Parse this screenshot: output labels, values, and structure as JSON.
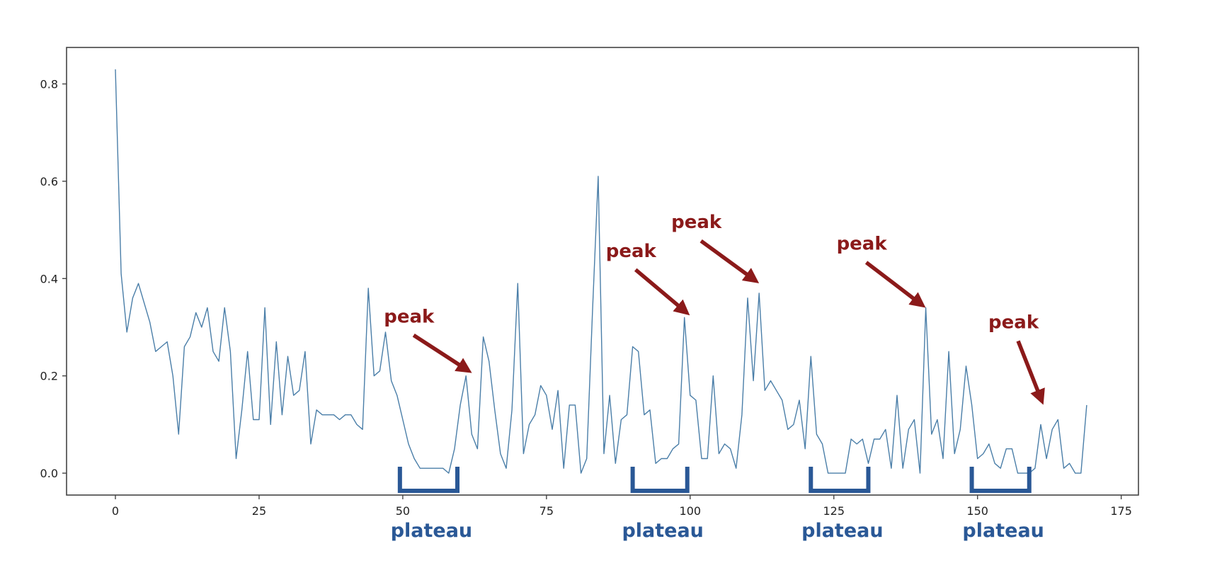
{
  "chart_data": {
    "type": "line",
    "title": "",
    "xlabel": "",
    "ylabel": "",
    "xlim": [
      -8.5,
      178
    ],
    "ylim": [
      -0.045,
      0.875
    ],
    "xticks": [
      0,
      25,
      50,
      75,
      100,
      125,
      150,
      175
    ],
    "xtick_labels": [
      "0",
      "25",
      "50",
      "75",
      "100",
      "125",
      "150",
      "175"
    ],
    "yticks": [
      0.0,
      0.2,
      0.4,
      0.6,
      0.8
    ],
    "ytick_labels": [
      "0.0",
      "0.2",
      "0.4",
      "0.6",
      "0.8"
    ],
    "grid": false,
    "series": [
      {
        "color": "#4a7ea8",
        "x": [
          0,
          1,
          2,
          3,
          4,
          5,
          6,
          7,
          8,
          9,
          10,
          11,
          12,
          13,
          14,
          15,
          16,
          17,
          18,
          19,
          20,
          21,
          22,
          23,
          24,
          25,
          26,
          27,
          28,
          29,
          30,
          31,
          32,
          33,
          34,
          35,
          36,
          37,
          38,
          39,
          40,
          41,
          42,
          43,
          44,
          45,
          46,
          47,
          48,
          49,
          50,
          51,
          52,
          53,
          54,
          55,
          56,
          57,
          58,
          59,
          60,
          61,
          62,
          63,
          64,
          65,
          66,
          67,
          68,
          69,
          70,
          71,
          72,
          73,
          74,
          75,
          76,
          77,
          78,
          79,
          80,
          81,
          82,
          83,
          84,
          85,
          86,
          87,
          88,
          89,
          90,
          91,
          92,
          93,
          94,
          95,
          96,
          97,
          98,
          99,
          100,
          101,
          102,
          103,
          104,
          105,
          106,
          107,
          108,
          109,
          110,
          111,
          112,
          113,
          114,
          115,
          116,
          117,
          118,
          119,
          120,
          121,
          122,
          123,
          124,
          125,
          126,
          127,
          128,
          129,
          130,
          131,
          132,
          133,
          134,
          135,
          136,
          137,
          138,
          139,
          140,
          141,
          142,
          143,
          144,
          145,
          146,
          147,
          148,
          149,
          150,
          151,
          152,
          153,
          154,
          155,
          156,
          157,
          158,
          159,
          160,
          161,
          162,
          163,
          164,
          165,
          166,
          167,
          168,
          169
        ],
        "values": [
          0.83,
          0.41,
          0.29,
          0.36,
          0.39,
          0.35,
          0.31,
          0.25,
          0.26,
          0.27,
          0.2,
          0.08,
          0.26,
          0.28,
          0.33,
          0.3,
          0.34,
          0.25,
          0.23,
          0.34,
          0.25,
          0.03,
          0.13,
          0.25,
          0.11,
          0.11,
          0.34,
          0.1,
          0.27,
          0.12,
          0.24,
          0.16,
          0.17,
          0.25,
          0.06,
          0.13,
          0.12,
          0.12,
          0.12,
          0.11,
          0.12,
          0.12,
          0.1,
          0.09,
          0.38,
          0.2,
          0.21,
          0.29,
          0.19,
          0.16,
          0.11,
          0.06,
          0.03,
          0.01,
          0.01,
          0.01,
          0.01,
          0.01,
          0.0,
          0.05,
          0.14,
          0.2,
          0.08,
          0.05,
          0.28,
          0.23,
          0.13,
          0.04,
          0.01,
          0.13,
          0.39,
          0.04,
          0.1,
          0.12,
          0.18,
          0.16,
          0.09,
          0.17,
          0.01,
          0.14,
          0.14,
          0.0,
          0.03,
          0.33,
          0.61,
          0.04,
          0.16,
          0.02,
          0.11,
          0.12,
          0.26,
          0.25,
          0.12,
          0.13,
          0.02,
          0.03,
          0.03,
          0.05,
          0.06,
          0.32,
          0.16,
          0.15,
          0.03,
          0.03,
          0.2,
          0.04,
          0.06,
          0.05,
          0.01,
          0.12,
          0.36,
          0.19,
          0.37,
          0.17,
          0.19,
          0.17,
          0.15,
          0.09,
          0.1,
          0.15,
          0.05,
          0.24,
          0.08,
          0.06,
          0.0,
          0.0,
          0.0,
          0.0,
          0.07,
          0.06,
          0.07,
          0.02,
          0.07,
          0.07,
          0.09,
          0.01,
          0.16,
          0.01,
          0.09,
          0.11,
          0.0,
          0.34,
          0.08,
          0.11,
          0.03,
          0.25,
          0.04,
          0.09,
          0.22,
          0.14,
          0.03,
          0.04,
          0.06,
          0.02,
          0.01,
          0.05,
          0.05,
          0.0,
          0.0,
          0.0,
          0.01,
          0.1,
          0.03,
          0.09,
          0.11,
          0.01,
          0.02,
          0.0,
          0.0,
          0.14
        ]
      }
    ],
    "annotations": {
      "peaks": [
        {
          "text": "peak",
          "x": 61.5,
          "y": 0.205
        },
        {
          "text": "peak",
          "x": 99.5,
          "y": 0.325
        },
        {
          "text": "peak",
          "x": 111.5,
          "y": 0.39
        },
        {
          "text": "peak",
          "x": 140.5,
          "y": 0.34
        },
        {
          "text": "peak",
          "x": 161.5,
          "y": 0.145
        }
      ],
      "plateaus": [
        {
          "text": "plateau",
          "x_start": 49.5,
          "x_end": 59.5
        },
        {
          "text": "plateau",
          "x_start": 90,
          "x_end": 99.5
        },
        {
          "text": "plateau",
          "x_start": 121,
          "x_end": 131
        },
        {
          "text": "plateau",
          "x_start": 149,
          "x_end": 159
        }
      ]
    },
    "colors": {
      "line": "#4a7ea8",
      "peak": "#8b1a1a",
      "plateau": "#2a5896",
      "axes": "#444444"
    }
  }
}
